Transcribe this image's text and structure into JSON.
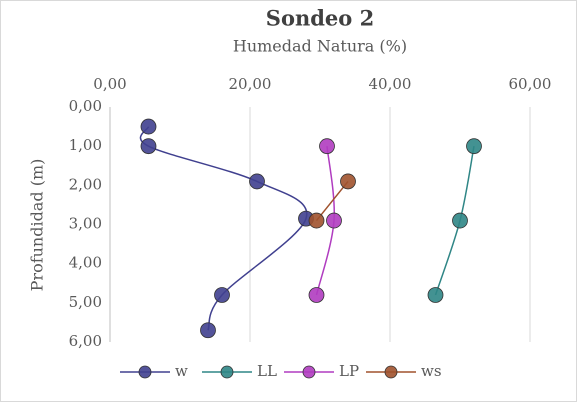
{
  "chart_data": {
    "type": "scatter",
    "title": "Sondeo 2",
    "subtitle": "Humedad Natura (%)",
    "y_label": "Profundidad (m)",
    "xlim": [
      0,
      60
    ],
    "xticks": [
      {
        "value": 0,
        "label": "0,00"
      },
      {
        "value": 20,
        "label": "20,00"
      },
      {
        "value": 40,
        "label": "40,00"
      },
      {
        "value": 60,
        "label": "60,00"
      }
    ],
    "ylim": [
      0,
      6
    ],
    "y_reversed": true,
    "x_axis_position": "top",
    "yticks": [
      {
        "value": 0,
        "label": "0,00"
      },
      {
        "value": 1,
        "label": "1,00"
      },
      {
        "value": 2,
        "label": "2,00"
      },
      {
        "value": 3,
        "label": "3,00"
      },
      {
        "value": 4,
        "label": "4,00"
      },
      {
        "value": 5,
        "label": "5,00"
      },
      {
        "value": 6,
        "label": "6,00"
      }
    ],
    "grid": "x",
    "smooth": true,
    "legend": "bottom",
    "series": [
      {
        "name": "w",
        "color": "#40408f",
        "x": [
          5.5,
          5.5,
          21,
          28,
          16,
          14
        ],
        "values": [
          0.5,
          1.0,
          1.9,
          2.85,
          4.8,
          5.7
        ]
      },
      {
        "name": "LL",
        "color": "#2f8686",
        "x": [
          52,
          50,
          46.5
        ],
        "values": [
          1.0,
          2.9,
          4.8
        ]
      },
      {
        "name": "LP",
        "color": "#b03cc0",
        "x": [
          31,
          32,
          29.5
        ],
        "values": [
          1.0,
          2.9,
          4.8
        ]
      },
      {
        "name": "ws",
        "color": "#a0522d",
        "x": [
          34,
          29.5
        ],
        "values": [
          1.9,
          2.9
        ]
      }
    ]
  }
}
